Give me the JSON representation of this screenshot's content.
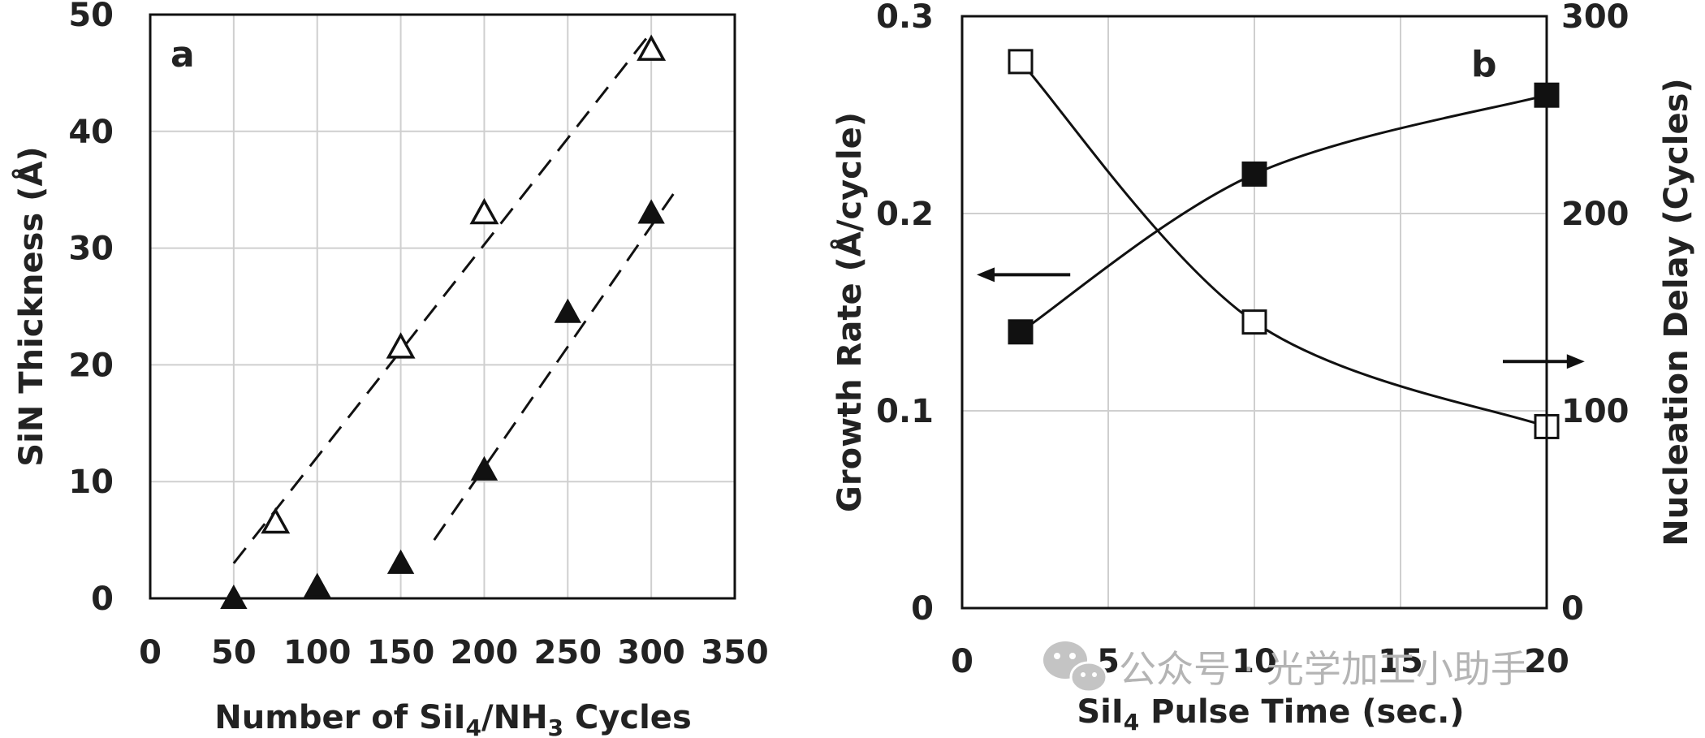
{
  "watermark": {
    "text": "公众号 · 光学加工小助手"
  },
  "chart_data": [
    {
      "type": "scatter",
      "panel_label": "a",
      "xlabel": {
        "pre": "Number of SiI",
        "sub1": "4",
        "mid": "/NH",
        "sub2": "3",
        "post": " Cycles"
      },
      "ylabel": "SiN Thickness (Å)",
      "xlim": [
        0,
        350
      ],
      "ylim": [
        0,
        50
      ],
      "xticks": [
        "0",
        "50",
        "100",
        "150",
        "200",
        "250",
        "300",
        "350"
      ],
      "yticks": [
        "0",
        "10",
        "20",
        "30",
        "40",
        "50"
      ],
      "grid": true,
      "series": [
        {
          "name": "open triangles",
          "marker": "triangle-open",
          "x": [
            75,
            150,
            200,
            300
          ],
          "y": [
            6.5,
            21.5,
            33,
            47
          ],
          "fit": {
            "style": "dashed",
            "x": [
              50,
              300
            ],
            "y": [
              3,
              48.5
            ]
          }
        },
        {
          "name": "filled triangles",
          "marker": "triangle-filled",
          "x": [
            50,
            100,
            150,
            200,
            250,
            300
          ],
          "y": [
            0,
            1,
            3,
            11,
            24.5,
            33
          ],
          "fit": {
            "style": "dashed",
            "x": [
              170,
              315
            ],
            "y": [
              5,
              35
            ]
          }
        }
      ],
      "annotations": []
    },
    {
      "type": "line",
      "panel_label": "b",
      "xlabel": {
        "pre": "SiI",
        "sub1": "4",
        "post": " Pulse Time (sec.)"
      },
      "ylabel": "Growth Rate (Å/cycle)",
      "ylabel_right": "Nucleation Delay (Cycles)",
      "xlim": [
        0,
        20
      ],
      "ylim": [
        0,
        0.3
      ],
      "ylim_right": [
        0,
        300
      ],
      "xticks": [
        "0",
        "5",
        "10",
        "15",
        "20"
      ],
      "yticks": [
        "0",
        "0.1",
        "0.2",
        "0.3"
      ],
      "yticks_right": [
        "0",
        "100",
        "200",
        "300"
      ],
      "grid": true,
      "series": [
        {
          "name": "Growth Rate",
          "axis": "left",
          "marker": "square-filled",
          "x": [
            2,
            10,
            20
          ],
          "y": [
            0.14,
            0.22,
            0.26
          ]
        },
        {
          "name": "Nucleation Delay",
          "axis": "right",
          "marker": "square-open",
          "x": [
            2,
            10,
            20
          ],
          "y": [
            277,
            145,
            92
          ]
        }
      ],
      "annotations": [
        {
          "type": "arrow",
          "direction": "left",
          "points_to_axis": "left",
          "x": [
            3.7,
            0.5
          ],
          "y": 0.169
        },
        {
          "type": "arrow",
          "direction": "right",
          "points_to_axis": "right",
          "x": [
            18.5,
            21.3
          ],
          "y": 125
        }
      ]
    }
  ]
}
